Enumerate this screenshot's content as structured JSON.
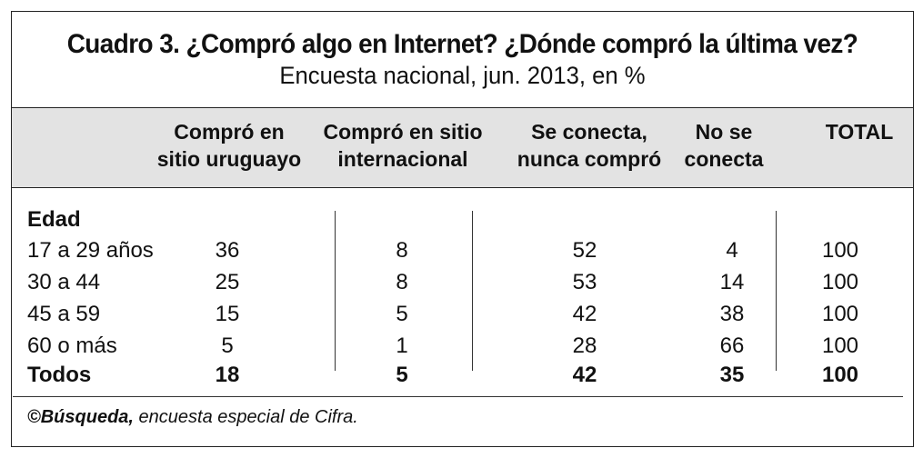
{
  "title": "Cuadro 3. ¿Compró algo en Internet? ¿Dónde compró la última vez?",
  "subtitle": "Encuesta nacional, jun. 2013, en %",
  "columns": [
    {
      "line1": "Compró en",
      "line2": "sitio uruguayo"
    },
    {
      "line1": "Compró en sitio",
      "line2": "internacional"
    },
    {
      "line1": "Se conecta,",
      "line2": "nunca compró"
    },
    {
      "line1": "No se",
      "line2": "conecta"
    },
    {
      "line1": "",
      "line2": "TOTAL"
    }
  ],
  "section_label": "Edad",
  "rows": [
    {
      "label": "17 a 29 años",
      "values": [
        "36",
        "8",
        "52",
        "4",
        "100"
      ]
    },
    {
      "label": "30 a 44",
      "values": [
        "25",
        "8",
        "53",
        "14",
        "100"
      ]
    },
    {
      "label": "45 a 59",
      "values": [
        "15",
        "5",
        "42",
        "38",
        "100"
      ]
    },
    {
      "label": "60 o más",
      "values": [
        "5",
        "1",
        "28",
        "66",
        "100"
      ]
    },
    {
      "label": "Todos",
      "values": [
        "18",
        "5",
        "42",
        "35",
        "100"
      ]
    }
  ],
  "footer": {
    "source": "©Búsqueda,",
    "note": " encuesta especial de Cifra."
  },
  "chart_data": {
    "type": "table",
    "title": "Cuadro 3. ¿Compró algo en Internet? ¿Dónde compró la última vez?",
    "subtitle": "Encuesta nacional, jun. 2013, en %",
    "columns": [
      "Compró en sitio uruguayo",
      "Compró en sitio internacional",
      "Se conecta, nunca compró",
      "No se conecta",
      "TOTAL"
    ],
    "row_group": "Edad",
    "rows": [
      "17 a 29 años",
      "30 a 44",
      "45 a 59",
      "60 o más",
      "Todos"
    ],
    "values": [
      [
        36,
        8,
        52,
        4,
        100
      ],
      [
        25,
        8,
        53,
        14,
        100
      ],
      [
        15,
        5,
        42,
        38,
        100
      ],
      [
        5,
        1,
        28,
        66,
        100
      ],
      [
        18,
        5,
        42,
        35,
        100
      ]
    ]
  }
}
